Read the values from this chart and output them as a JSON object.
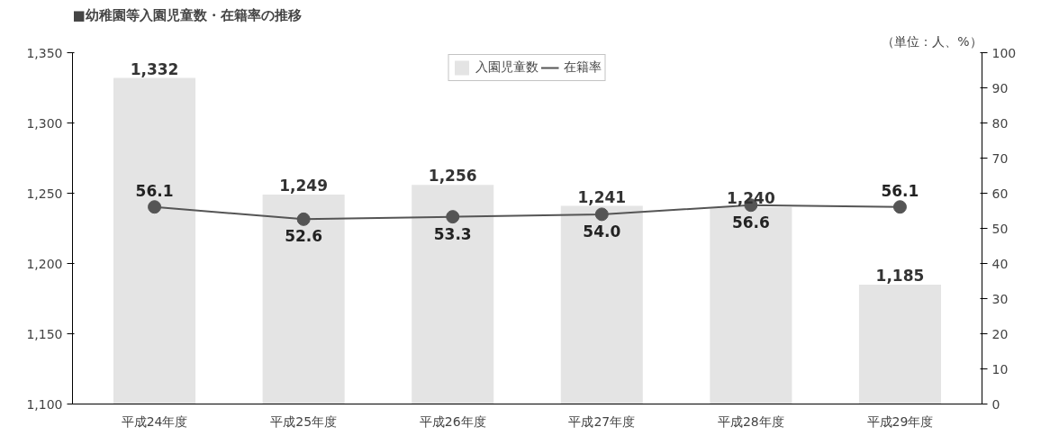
{
  "chart_data": {
    "type": "bar",
    "title": "■幼稚園等入園児童数・在籍率の推移",
    "annotations": [
      "（単位：人、%）"
    ],
    "categories": [
      "平成24年度",
      "平成25年度",
      "平成26年度",
      "平成27年度",
      "平成28年度",
      "平成29年度"
    ],
    "series": [
      {
        "name": "入園児童数",
        "color": "#e4e4e4",
        "values": [
          1332,
          1249,
          1256,
          1241,
          1240,
          1185
        ],
        "value_labels": [
          "1,332",
          "1,249",
          "1,256",
          "1,241",
          "1,240",
          "1,185"
        ]
      },
      {
        "name": "在籍率",
        "type": "line",
        "axis": "y2",
        "color": "#555555",
        "values": [
          56.1,
          52.6,
          53.3,
          54.0,
          56.6,
          56.1
        ],
        "value_labels": [
          "56.1",
          "52.6",
          "53.3",
          "54.0",
          "56.6",
          "56.1"
        ]
      }
    ],
    "ylim": [
      1100,
      1350
    ],
    "yticks": [
      {
        "value": 1100,
        "label": "1,100"
      },
      {
        "value": 1150,
        "label": "1,150"
      },
      {
        "value": 1200,
        "label": "1,200"
      },
      {
        "value": 1250,
        "label": "1,250"
      },
      {
        "value": 1300,
        "label": "1,300"
      },
      {
        "value": 1350,
        "label": "1,350"
      }
    ],
    "y2lim": [
      0,
      100
    ],
    "y2ticks": [
      0,
      10,
      20,
      30,
      40,
      50,
      60,
      70,
      80,
      90,
      100
    ],
    "legend": "top",
    "grid": false,
    "marker": "circle",
    "line_style": "solid"
  }
}
